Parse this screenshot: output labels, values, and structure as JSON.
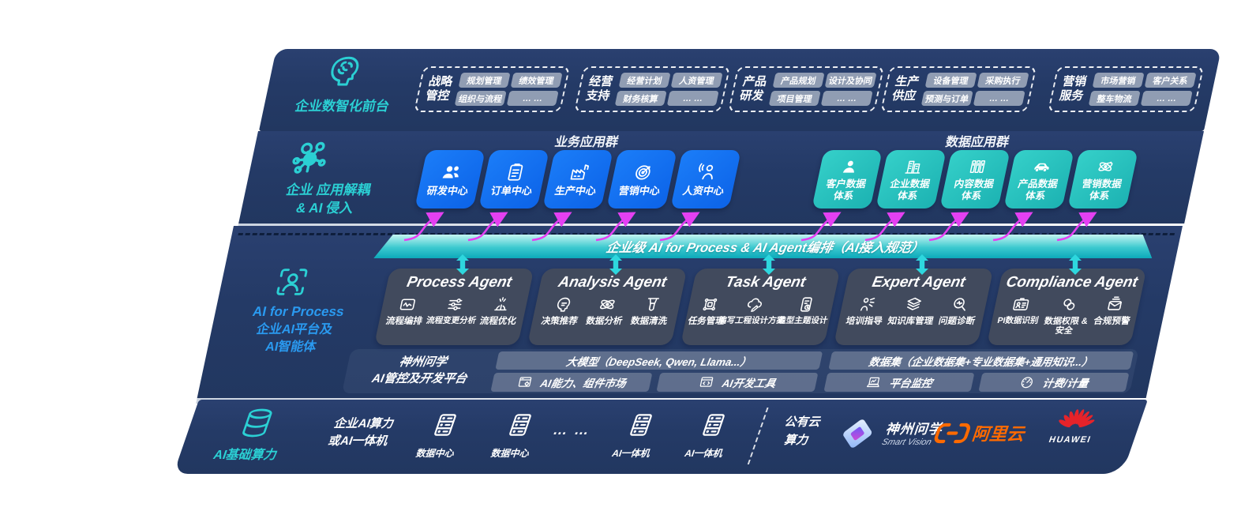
{
  "front_office": {
    "label": "企业数智化前台",
    "icon": "brain-icon",
    "groups": [
      {
        "title_lines": [
          "战略",
          "管控"
        ],
        "items": [
          "规划管理",
          "绩效管理",
          "组织与流程",
          "… …"
        ]
      },
      {
        "title_lines": [
          "经营",
          "支持"
        ],
        "items": [
          "经营计划",
          "人资管理",
          "财务核算",
          "… …"
        ]
      },
      {
        "title_lines": [
          "产品",
          "研发"
        ],
        "items": [
          "产品规划",
          "设计及协同",
          "项目管理",
          "… …"
        ]
      },
      {
        "title_lines": [
          "生产",
          "供应"
        ],
        "items": [
          "设备管理",
          "采购执行",
          "预测与订单",
          "… …"
        ]
      },
      {
        "title_lines": [
          "营销",
          "服务"
        ],
        "items": [
          "市场营销",
          "客户关系",
          "整车物流",
          "… …"
        ]
      }
    ]
  },
  "app_layer": {
    "icon": "molecule-icon",
    "label_lines": [
      "企业 应用解耦",
      "& AI 侵入"
    ],
    "business_group": {
      "title": "业务应用群",
      "apps": [
        {
          "label": "研发中心",
          "icon": "team-icon"
        },
        {
          "label": "订单中心",
          "icon": "order-clipboard-icon"
        },
        {
          "label": "生产中心",
          "icon": "factory-icon"
        },
        {
          "label": "营销中心",
          "icon": "target-icon"
        },
        {
          "label": "人资中心",
          "icon": "hr-person-icon"
        }
      ]
    },
    "data_group": {
      "title": "数据应用群",
      "apps": [
        {
          "label_lines": [
            "客户数据",
            "体系"
          ],
          "icon": "customer-icon"
        },
        {
          "label_lines": [
            "企业数据",
            "体系"
          ],
          "icon": "building-icon"
        },
        {
          "label_lines": [
            "内容数据",
            "体系"
          ],
          "icon": "content-books-icon"
        },
        {
          "label_lines": [
            "产品数据",
            "体系"
          ],
          "icon": "car-icon"
        },
        {
          "label_lines": [
            "营销数据",
            "体系"
          ],
          "icon": "atom-icon"
        }
      ]
    }
  },
  "orchestration_bar": {
    "label": "企业级 AI for Process & AI Agent编排（AI接入规范）"
  },
  "ai_layer": {
    "icon": "person-frame-icon",
    "label_lines": [
      "AI for Process",
      "企业AI平台及",
      "AI智能体"
    ],
    "agents": [
      {
        "title": "Process Agent",
        "items": [
          {
            "label": "流程编排",
            "icon": "flow-doc-icon"
          },
          {
            "label": "流程变更分析",
            "icon": "flow-sliders-icon"
          },
          {
            "label": "流程优化",
            "icon": "flow-optimize-icon"
          }
        ]
      },
      {
        "title": "Analysis Agent",
        "items": [
          {
            "label": "决策推荐",
            "icon": "decision-head-icon"
          },
          {
            "label": "数据分析",
            "icon": "data-atom-icon"
          },
          {
            "label": "数据清洗",
            "icon": "data-clean-icon"
          }
        ]
      },
      {
        "title": "Task Agent",
        "items": [
          {
            "label": "任务管理",
            "icon": "task-grid-icon"
          },
          {
            "label": "编写工程设计方案",
            "icon": "cloud-design-icon"
          },
          {
            "label": "造型主题设计",
            "icon": "theme-design-icon"
          }
        ]
      },
      {
        "title": "Expert Agent",
        "items": [
          {
            "label": "培训指导",
            "icon": "training-icon"
          },
          {
            "label": "知识库管理",
            "icon": "knowledge-layers-icon"
          },
          {
            "label": "问题诊断",
            "icon": "diagnosis-icon"
          }
        ]
      },
      {
        "title": "Compliance Agent",
        "items": [
          {
            "label": "PI数据识别",
            "icon": "id-card-icon"
          },
          {
            "label": "数据权限 & 安全",
            "icon": "data-permission-icon"
          },
          {
            "label": "合规预警",
            "icon": "alert-icon"
          }
        ]
      }
    ],
    "platform": {
      "label_lines": [
        "神州问学",
        "AI管控及开发平台"
      ],
      "model_bar": "大模型（DeepSeek, Qwen, Llama...）",
      "dataset_bar": "数据集（企业数据集+专业数据集+通用知识...）",
      "cells": [
        {
          "label": "AI能力、组件市场",
          "icon": "component-market-icon"
        },
        {
          "label": "AI开发工具",
          "icon": "dev-tools-icon"
        },
        {
          "label": "平台监控",
          "icon": "monitor-icon"
        },
        {
          "label": "计费/计量",
          "icon": "meter-icon"
        }
      ]
    }
  },
  "infra": {
    "icon": "database-icon",
    "label": "AI基础算力",
    "compute_lines": [
      "企业AI算力",
      "或AI一体机"
    ],
    "nodes": [
      {
        "label": "数据中心",
        "icon": "server-icon"
      },
      {
        "label": "数据中心",
        "icon": "server-icon"
      },
      {
        "label": "AI一体机",
        "icon": "server-icon"
      },
      {
        "label": "AI一体机",
        "icon": "server-icon"
      }
    ],
    "ellipsis": "… …",
    "cloud_lines": [
      "公有云",
      "算力"
    ],
    "vendors": {
      "smartvision": {
        "name_cn": "神州问学",
        "name_en": "Smart Vision",
        "icon": "smartvision-logo"
      },
      "aliyun": {
        "name": "阿里云",
        "icon": "aliyun-logo"
      },
      "huawei": {
        "name": "HUAWEI",
        "icon": "huawei-logo"
      }
    }
  },
  "colors": {
    "slab_navy": "#253b68",
    "accent_teal": "#2bd0d4",
    "accent_blue_label": "#2a9af0",
    "app_blue": "#0f6ff2",
    "app_teal": "#27c5c0",
    "bar_teal_top": "#b9f2ef",
    "bar_teal_bottom": "#0ca9ba",
    "agent_slate": "#414a5d",
    "pill_gray": "#93a0b4",
    "arrow_magenta": "#e440f2",
    "arrow_teal": "#2ed7de",
    "aliyun_orange": "#ff6a00",
    "huawei_red": "#e6232a"
  }
}
